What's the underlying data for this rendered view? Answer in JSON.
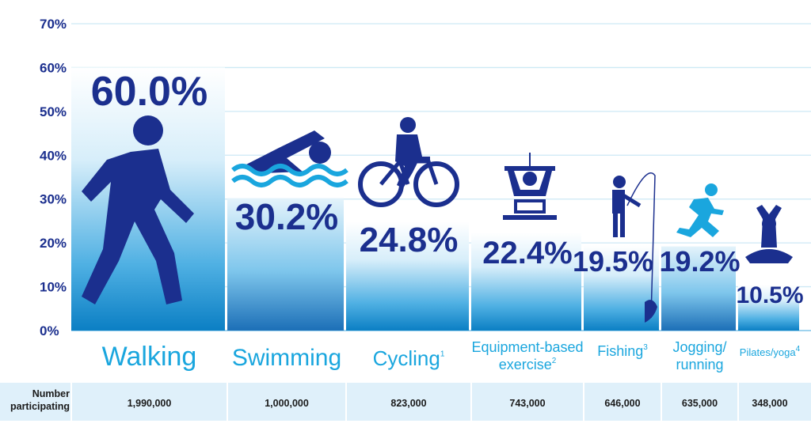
{
  "chart_data": {
    "type": "bar",
    "ylim": [
      0,
      70
    ],
    "yticks": [
      "0%",
      "10%",
      "20%",
      "30%",
      "40%",
      "50%",
      "60%",
      "70%"
    ],
    "categories": [
      "Walking",
      "Swimming",
      "Cycling",
      "Equipment-based exercise",
      "Fishing",
      "Jogging/ running",
      "Pilates/yoga"
    ],
    "category_labels": [
      {
        "lines": [
          "Walking"
        ],
        "sup": ""
      },
      {
        "lines": [
          "Swimming"
        ],
        "sup": ""
      },
      {
        "lines": [
          "Cycling"
        ],
        "sup": "1"
      },
      {
        "lines": [
          "Equipment-based",
          "exercise"
        ],
        "sup": "2"
      },
      {
        "lines": [
          "Fishing"
        ],
        "sup": "3"
      },
      {
        "lines": [
          "Jogging/",
          "running"
        ],
        "sup": ""
      },
      {
        "lines": [
          "Pilates/yoga"
        ],
        "sup": "4"
      }
    ],
    "values": [
      60.0,
      30.2,
      24.8,
      22.4,
      19.5,
      19.2,
      10.5
    ],
    "value_labels": [
      "60.0%",
      "30.2%",
      "24.8%",
      "22.4%",
      "19.5%",
      "19.2%",
      "10.5%"
    ],
    "icons": [
      "walking-icon",
      "swimming-icon",
      "cycling-icon",
      "weightlifting-icon",
      "fishing-icon",
      "running-icon",
      "yoga-icon"
    ],
    "grid": true,
    "participation": {
      "label": [
        "Number",
        "participating"
      ],
      "values": [
        "1,990,000",
        "1,000,000",
        "823,000",
        "743,000",
        "646,000",
        "635,000",
        "348,000"
      ]
    },
    "colors": {
      "bar_top": "#ffffff",
      "bar_bottom": "#0b7fc4",
      "text_dark": "#1b2f8e",
      "text_light": "#1aa6de",
      "grid": "#cde9f5",
      "row_band": "#dff0fa"
    }
  }
}
